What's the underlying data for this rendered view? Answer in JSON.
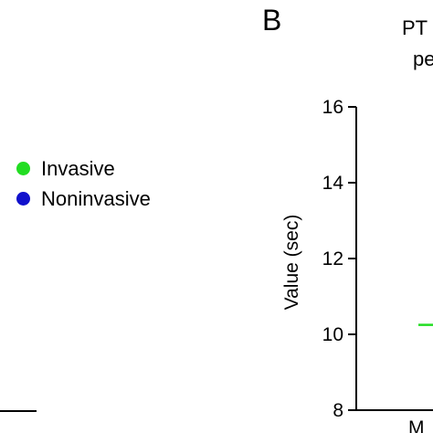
{
  "panel_label": "B",
  "chart_data": {
    "type": "scatter",
    "title_lines": [
      "PT",
      "pe"
    ],
    "ylabel": "Value (sec)",
    "ylim": [
      8,
      16
    ],
    "yticks": [
      8,
      10,
      12,
      14,
      16
    ],
    "x_tick_label": "M",
    "legend": [
      {
        "name": "Invasive",
        "color": "#22dd22"
      },
      {
        "name": "Noninvasive",
        "color": "#1111cc"
      }
    ],
    "series": [
      {
        "name": "Invasive",
        "mean_line": 10.25,
        "color": "#22dd22"
      }
    ]
  }
}
